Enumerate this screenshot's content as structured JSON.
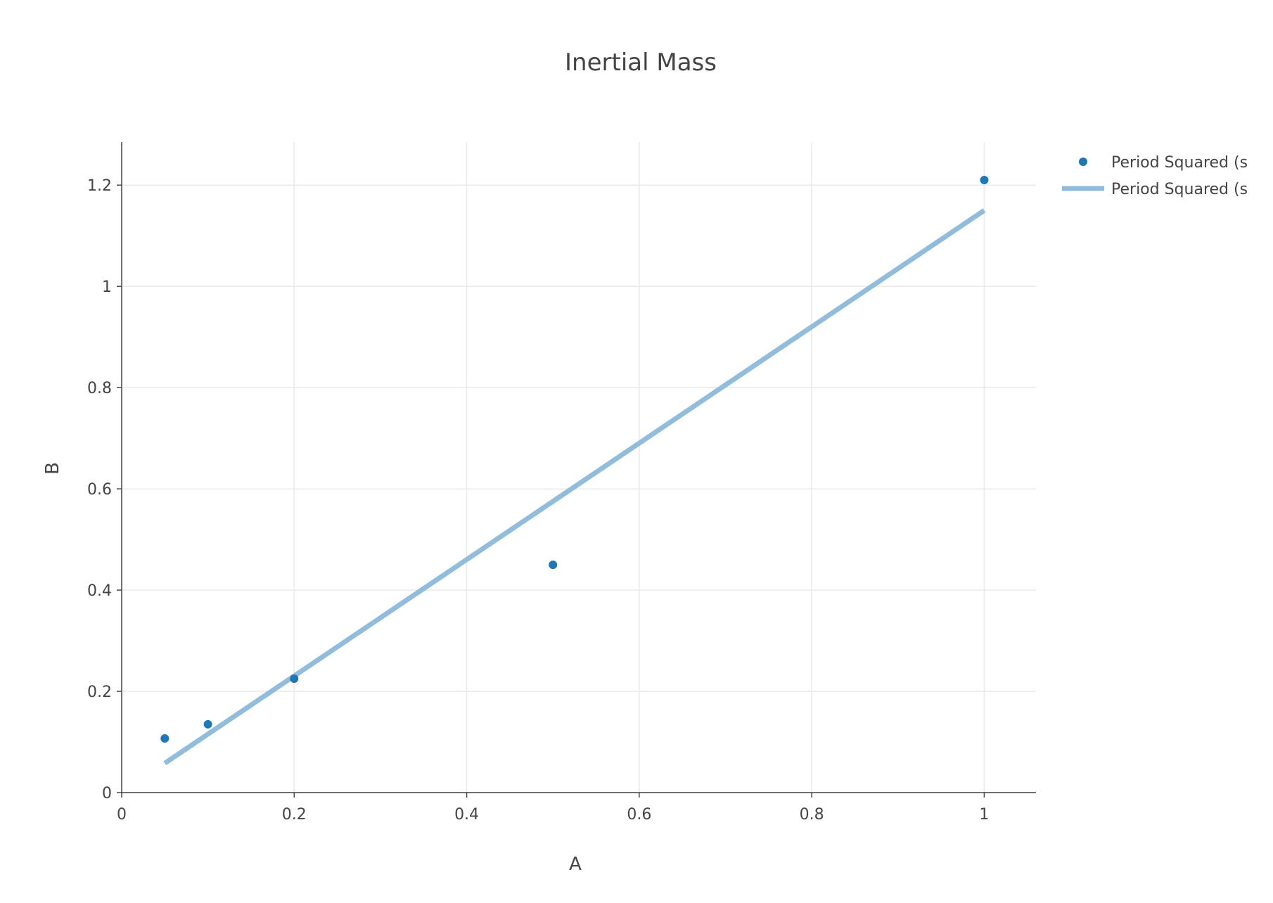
{
  "chart_data": {
    "type": "scatter",
    "title": "Inertial Mass",
    "xlabel": "A",
    "ylabel": "B",
    "xlim": [
      0,
      1.06
    ],
    "ylim": [
      0,
      1.285
    ],
    "xticks": [
      0,
      0.2,
      0.4,
      0.6,
      0.8,
      1
    ],
    "xtick_labels": [
      "0",
      "0.2",
      "0.4",
      "0.6",
      "0.8",
      "1"
    ],
    "yticks": [
      0,
      0.2,
      0.4,
      0.6,
      0.8,
      1,
      1.2
    ],
    "ytick_labels": [
      "0",
      "0.2",
      "0.4",
      "0.6",
      "0.8",
      "1",
      "1.2"
    ],
    "grid": true,
    "legend_position": "top-right",
    "series": [
      {
        "name": "Period Squared (s",
        "mode": "markers",
        "color": "#1f77b4",
        "x": [
          0.05,
          0.1,
          0.2,
          0.5,
          1
        ],
        "y": [
          0.107,
          0.135,
          0.225,
          0.45,
          1.21
        ]
      },
      {
        "name": "Period Squared (s",
        "mode": "lines",
        "color": "#91bcdb",
        "x": [
          0.05,
          1
        ],
        "y": [
          0.058,
          1.15
        ]
      }
    ]
  }
}
